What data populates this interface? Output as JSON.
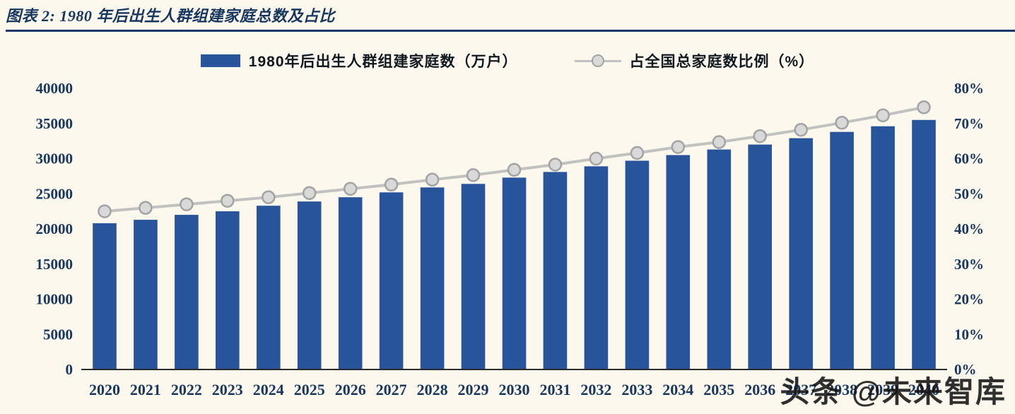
{
  "title": "图表 2: 1980 年后出生人群组建家庭总数及占比",
  "legend": {
    "bar_label": "1980年后出生人群组建家庭数（万户）",
    "line_label": "占全国总家庭数比例（%）"
  },
  "watermark": "头条 @未来智库",
  "colors": {
    "background": "#FCF8EE",
    "bar": "#27549B",
    "line": "#C1C1C1",
    "marker_fill": "#D9D9D9",
    "marker_stroke": "#A3A3A3",
    "title": "#17375E",
    "rule": "#1F3864",
    "axis_text": "#17375E",
    "axis_line": "#2B2B2B",
    "legend_text": "#101820"
  },
  "chart_data": {
    "type": "combo",
    "title": "1980 年后出生人群组建家庭总数及占比",
    "categories": [
      "2020",
      "2021",
      "2022",
      "2023",
      "2024",
      "2025",
      "2026",
      "2027",
      "2028",
      "2029",
      "2030",
      "2031",
      "2032",
      "2033",
      "2034",
      "2035",
      "2036",
      "2037",
      "2038",
      "2039",
      "2040"
    ],
    "series": [
      {
        "name": "1980年后出生人群组建家庭数（万户）",
        "type": "bar",
        "axis": "left",
        "color": "#27549B",
        "values": [
          20800,
          21300,
          22000,
          22500,
          23300,
          23900,
          24500,
          25200,
          25900,
          26400,
          27300,
          28100,
          28900,
          29700,
          30500,
          31300,
          32000,
          32900,
          33800,
          34600,
          35500
        ]
      },
      {
        "name": "占全国总家庭数比例（%）",
        "type": "line",
        "axis": "right",
        "color": "#C1C1C1",
        "values": [
          45.0,
          46.0,
          47.0,
          48.0,
          49.0,
          50.2,
          51.4,
          52.6,
          54.0,
          55.3,
          56.8,
          58.3,
          60.0,
          61.6,
          63.3,
          64.7,
          66.4,
          68.2,
          70.2,
          72.3,
          74.6
        ]
      }
    ],
    "left_axis": {
      "min": 0,
      "max": 40000,
      "step": 5000
    },
    "right_axis": {
      "min": 0,
      "max": 80,
      "step": 10,
      "suffix": "%"
    },
    "grid": false,
    "legend_position": "top"
  }
}
